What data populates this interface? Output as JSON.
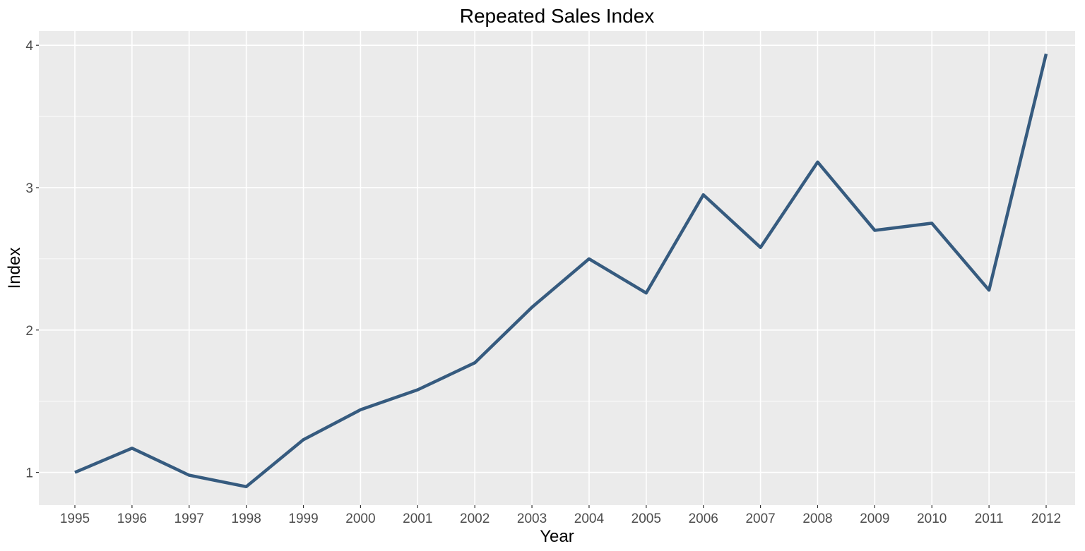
{
  "chart_data": {
    "type": "line",
    "title": "Repeated Sales Index",
    "xlabel": "Year",
    "ylabel": "Index",
    "x": [
      "1995",
      "1996",
      "1997",
      "1998",
      "1999",
      "2000",
      "2001",
      "2002",
      "2003",
      "2004",
      "2005",
      "2006",
      "2007",
      "2008",
      "2009",
      "2010",
      "2011",
      "2012"
    ],
    "series": [
      {
        "values": [
          1.0,
          1.17,
          0.98,
          0.9,
          1.23,
          1.44,
          1.58,
          1.77,
          2.16,
          2.5,
          2.26,
          2.95,
          2.58,
          3.18,
          2.7,
          2.75,
          2.28,
          3.94
        ]
      }
    ],
    "yticks": [
      1,
      2,
      3,
      4
    ],
    "ylim": [
      0.77,
      4.1
    ],
    "grid": true,
    "colors": {
      "line": "#365b7f",
      "panel": "#ebebeb",
      "grid": "#ffffff"
    }
  }
}
